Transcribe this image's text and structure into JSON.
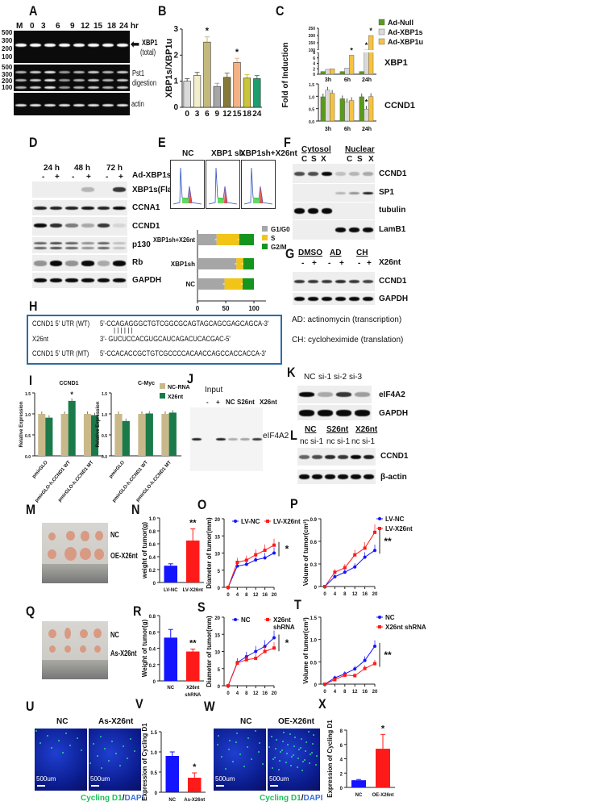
{
  "panels": {
    "A": "A",
    "B": "B",
    "C": "C",
    "D": "D",
    "E": "E",
    "F": "F",
    "G": "G",
    "H": "H",
    "I": "I",
    "J": "J",
    "K": "K",
    "L": "L",
    "M": "M",
    "N": "N",
    "O": "O",
    "P": "P",
    "Q": "Q",
    "R": "R",
    "S": "S",
    "T": "T",
    "U": "U",
    "V": "V",
    "W": "W",
    "X": "X"
  },
  "A": {
    "lanes": [
      "M",
      "0",
      "3",
      "6",
      "9",
      "12",
      "15",
      "18",
      "24 hr"
    ],
    "markers": [
      "500",
      "300",
      "200",
      "100"
    ],
    "markers2": [
      "500",
      "300",
      "200",
      "100"
    ],
    "labels": {
      "xbp1": "XBP1",
      "total": "(total)",
      "pst1": "Pst1",
      "digestion": "digestion",
      "actin": "actin"
    }
  },
  "C": {
    "gene_upper": "XBP1",
    "gene_lower": "CCND1"
  },
  "D": {
    "times": [
      "24 h",
      "48 h",
      "72 h"
    ],
    "signs": [
      "-",
      "+",
      "-",
      "+",
      "-",
      "+"
    ],
    "treatment": "Ad-XBP1s",
    "rows": [
      "XBP1s(Flag)",
      "CCNA1",
      "CCND1",
      "p130",
      "Rb",
      "GAPDH"
    ]
  },
  "E": {
    "histograms": [
      "NC",
      "XBP1 sh",
      "XBP1sh+X26nt"
    ]
  },
  "F": {
    "groups": [
      "Cytosol",
      "Nuclear"
    ],
    "lanes": [
      "C",
      "S",
      "X",
      "C",
      "S",
      "X"
    ],
    "rows": [
      "CCND1",
      "SP1",
      "tubulin",
      "LamB1"
    ]
  },
  "G": {
    "groups": [
      "DMSO",
      "AD",
      "CH"
    ],
    "signs": [
      "-",
      "+",
      "-",
      "+",
      "-",
      "+"
    ],
    "treatment": "X26nt",
    "rows": [
      "CCND1",
      "GAPDH"
    ],
    "notes": [
      "AD:  actinomycin (transcription)",
      "CH:  cycloheximide (translation)"
    ]
  },
  "H": {
    "wt_label": "CCND1 5' UTR (WT)",
    "wt_seq": "5'-CCAGAGGGCTGTCGGCGCAGTAGCAGCGAGCAGCA-3'",
    "pairing": "| | | | | |",
    "x26_label": "X26nt",
    "x26_seq": "3'-  GUCUCCACGUGCAUCAGACUCACGAC-5'",
    "mt_label": "CCND1 5' UTR (MT)",
    "mt_seq": "5'-CCACACCGCTGTCGCCCCACAACCAGCCACCACCA-3'"
  },
  "J": {
    "input": "Input",
    "lanes": [
      "-",
      "+",
      "NC",
      "S26nt",
      "X26nt"
    ],
    "band": "eIF4A2"
  },
  "K": {
    "lanes": [
      "NC",
      "si-1",
      "si-2",
      "si-3"
    ],
    "rows": [
      "eIF4A2",
      "GAPDH"
    ]
  },
  "L": {
    "groups": [
      "NC",
      "S26nt",
      "X26nt"
    ],
    "lanes": [
      "nc",
      "si-1",
      "nc",
      "si-1",
      "nc",
      "si-1"
    ],
    "rows": [
      "CCND1",
      "β-actin"
    ]
  },
  "M": {
    "rows": [
      "NC",
      "OE-X26nt"
    ]
  },
  "Q": {
    "rows": [
      "NC",
      "As-X26nt"
    ]
  },
  "U": {
    "titles": [
      "NC",
      "As-X26nt"
    ],
    "scale": "500um",
    "stain1": "Cycling D1",
    "slash": "/",
    "stain2": "DAPI"
  },
  "W": {
    "titles": [
      "NC",
      "OE-X26nt"
    ],
    "scale": "500um",
    "stain1": "Cycling D1",
    "slash": "/",
    "stain2": "DAPI"
  },
  "colors": {
    "blue": "#1414ff",
    "red": "#ff1a1a",
    "ad_null": "#5a9a1a",
    "ad_xbp1s": "#d9d9d9",
    "ad_xbp1u": "#f5c242",
    "nc_rna": "#c9b98a",
    "x26nt": "#1a7a4a",
    "g1": "#a6a6a6",
    "s": "#f2c418",
    "g2m": "#16951e",
    "dapi": "#3a6fd8",
    "cycd1": "#1fbf5a"
  },
  "chart_data": [
    {
      "id": "B",
      "type": "bar",
      "ylabel": "XBP1s/XBP1u",
      "categories": [
        "0",
        "3",
        "6",
        "9",
        "12",
        "15",
        "18",
        "24"
      ],
      "values": [
        1.0,
        1.22,
        2.5,
        0.8,
        1.15,
        1.72,
        1.12,
        1.1
      ],
      "errors": [
        0.1,
        0.12,
        0.2,
        0.12,
        0.16,
        0.16,
        0.13,
        0.12
      ],
      "ylim": [
        0,
        3
      ],
      "yticks": [
        "0",
        "1",
        "2",
        "3"
      ],
      "significant": [
        "6",
        "15"
      ],
      "marker": "*",
      "colors": [
        "#d9d9d9",
        "#f2eecb",
        "#c4b97c",
        "#a6a6a6",
        "#857a3a",
        "#f4b183",
        "#c9c43a",
        "#1e9e6e"
      ]
    },
    {
      "id": "C",
      "type": "bar",
      "ylabel": "Fold of Induction",
      "legend": [
        "Ad-Null",
        "Ad-XBP1s",
        "Ad-XBP1u"
      ],
      "legend_position": "top-right",
      "categories": [
        "3h",
        "6h",
        "24h"
      ],
      "upper": {
        "name": "XBP1",
        "yticks_low": [
          "0",
          "2",
          "4",
          "6",
          "8"
        ],
        "yticks_high": [
          "100",
          "150",
          "200",
          "250"
        ],
        "broken_axis": true,
        "series": [
          {
            "name": "Ad-Null",
            "values": [
              1,
              1,
              1
            ]
          },
          {
            "name": "Ad-XBP1s",
            "values": [
              1.8,
              2.3,
              90
            ]
          },
          {
            "name": "Ad-XBP1u",
            "values": [
              2,
              7,
              200
            ]
          }
        ]
      },
      "lower": {
        "name": "CCND1",
        "ylim": [
          0,
          1.5
        ],
        "yticks": [
          "0.0",
          "0.5",
          "1.0",
          "1.5"
        ],
        "series": [
          {
            "name": "Ad-Null",
            "values": [
              0.98,
              0.9,
              0.98
            ]
          },
          {
            "name": "Ad-XBP1s",
            "values": [
              1.25,
              0.78,
              0.48
            ]
          },
          {
            "name": "Ad-XBP1u",
            "values": [
              1.12,
              0.83,
              0.99
            ]
          }
        ]
      },
      "marker": "*"
    },
    {
      "id": "E",
      "type": "bar",
      "orientation": "horizontal",
      "stacked": true,
      "categories": [
        "NC",
        "XBP1sh",
        "XBP1sh+X26nt"
      ],
      "legend": [
        "G1/G0",
        "S",
        "G2/M"
      ],
      "legend_position": "top-right",
      "series": [
        {
          "name": "G1/G0",
          "values": [
            48,
            69,
            34
          ]
        },
        {
          "name": "S",
          "values": [
            32,
            12,
            40
          ]
        },
        {
          "name": "G2/M",
          "values": [
            20,
            19,
            26
          ]
        }
      ],
      "xlim": [
        0,
        100
      ],
      "xticks": [
        "0",
        "50",
        "100"
      ]
    },
    {
      "id": "I1",
      "type": "bar",
      "title": "CCND1",
      "ylabel": "Relative Expression",
      "categories": [
        "pmirGLO",
        "pmirGLO-h.CCND1 WT",
        "pmirGLO-h.CCND1 MT"
      ],
      "series": [
        {
          "name": "NC-RNA",
          "values": [
            1,
            1,
            1
          ]
        },
        {
          "name": "X26nt",
          "values": [
            0.91,
            1.31,
            0.97
          ]
        }
      ],
      "ylim": [
        0,
        1.5
      ],
      "yticks": [
        "0.0",
        "0.5",
        "1.0",
        "1.5"
      ],
      "marker": "*"
    },
    {
      "id": "I2",
      "type": "bar",
      "title": "C-Myc",
      "ylabel": "Relative Expression",
      "legend": [
        "NC-RNA",
        "X26nt"
      ],
      "legend_position": "top-right",
      "categories": [
        "pmirGLO",
        "pmirGLO-h.CCND1 WT",
        "pmirGLO-h.CCND1 MT"
      ],
      "series": [
        {
          "name": "NC-RNA",
          "values": [
            1,
            1,
            1
          ]
        },
        {
          "name": "X26nt",
          "values": [
            0.83,
            1.01,
            1.03
          ]
        }
      ],
      "ylim": [
        0,
        1.5
      ],
      "yticks": [
        "0.0",
        "0.5",
        "1.0",
        "1.5"
      ]
    },
    {
      "id": "N",
      "type": "bar",
      "ylabel": "weight of tumor(g)",
      "categories": [
        "LV-NC",
        "LV-X26nt"
      ],
      "values": [
        0.26,
        0.65
      ],
      "errors": [
        0.03,
        0.18
      ],
      "ylim": [
        0,
        1.0
      ],
      "yticks": [
        "0",
        "0.2",
        "0.4",
        "0.6",
        "0.8",
        "1.0"
      ],
      "marker": "**"
    },
    {
      "id": "O",
      "type": "line",
      "ylabel": "Diameter of tumor(mm)",
      "x": [
        0,
        4,
        8,
        12,
        16,
        20
      ],
      "series": [
        {
          "name": "LV-NC",
          "values": [
            0,
            6.2,
            6.7,
            8,
            8.6,
            10
          ]
        },
        {
          "name": "LV-X26nt",
          "values": [
            0,
            7.3,
            7.9,
            9.5,
            10.8,
            12.3
          ]
        }
      ],
      "ylim": [
        0,
        20
      ],
      "yticks": [
        "0",
        "5",
        "10",
        "15",
        "20"
      ],
      "xticks": [
        "0",
        "4",
        "8",
        "12",
        "16",
        "20"
      ],
      "marker": "*",
      "legend_position": "top"
    },
    {
      "id": "P",
      "type": "line",
      "ylabel": "Volume of tumor(cm³)",
      "x": [
        0,
        4,
        8,
        12,
        16,
        20
      ],
      "series": [
        {
          "name": "LV-NC",
          "values": [
            0,
            0.13,
            0.19,
            0.26,
            0.39,
            0.48
          ]
        },
        {
          "name": "LV-X26nt",
          "values": [
            0,
            0.19,
            0.25,
            0.42,
            0.51,
            0.72
          ]
        }
      ],
      "ylim": [
        0,
        0.9
      ],
      "yticks": [
        "0",
        "0.3",
        "0.6",
        "0.9"
      ],
      "xticks": [
        "0",
        "4",
        "8",
        "12",
        "16",
        "20"
      ],
      "marker": "**",
      "legend_position": "top-right"
    },
    {
      "id": "R",
      "type": "bar",
      "ylabel": "Weight of tumor(g)",
      "categories": [
        "NC",
        "X26nt shRNA"
      ],
      "values": [
        0.53,
        0.36
      ],
      "errors": [
        0.1,
        0.03
      ],
      "ylim": [
        0,
        0.8
      ],
      "yticks": [
        "0",
        "0.2",
        "0.4",
        "0.6",
        "0.8"
      ],
      "marker": "**"
    },
    {
      "id": "S",
      "type": "line",
      "ylabel": "Diameter of tumor(mm)",
      "x": [
        0,
        4,
        8,
        12,
        16,
        20
      ],
      "series": [
        {
          "name": "NC",
          "values": [
            0,
            6.8,
            8.5,
            10,
            11.5,
            14
          ]
        },
        {
          "name": "X26nt shRNA",
          "values": [
            0,
            6.6,
            7.6,
            8,
            10,
            11
          ]
        }
      ],
      "ylim": [
        0,
        20
      ],
      "yticks": [
        "0",
        "5",
        "10",
        "15",
        "20"
      ],
      "xticks": [
        "0",
        "4",
        "8",
        "12",
        "16",
        "20"
      ],
      "marker": "*",
      "legend_position": "top"
    },
    {
      "id": "T",
      "type": "line",
      "ylabel": "Volume of tumor(cm³)",
      "x": [
        0,
        4,
        8,
        12,
        16,
        20
      ],
      "series": [
        {
          "name": "NC",
          "values": [
            0,
            0.14,
            0.23,
            0.34,
            0.53,
            0.85
          ]
        },
        {
          "name": "X26nt shRNA",
          "values": [
            0,
            0.1,
            0.2,
            0.19,
            0.35,
            0.46
          ]
        }
      ],
      "ylim": [
        0,
        1.5
      ],
      "yticks": [
        "0",
        "0.5",
        "1.0",
        "1.5"
      ],
      "xticks": [
        "0",
        "4",
        "8",
        "12",
        "16",
        "20"
      ],
      "marker": "**",
      "legend_position": "top-right"
    },
    {
      "id": "V",
      "type": "bar",
      "ylabel": "Expression of Cycling D1",
      "categories": [
        "NC",
        "As-X26nt"
      ],
      "values": [
        0.9,
        0.36
      ],
      "errors": [
        0.1,
        0.12
      ],
      "ylim": [
        0,
        1.5
      ],
      "yticks": [
        "0",
        "0.5",
        "1.0",
        "1.5"
      ],
      "marker": "*"
    },
    {
      "id": "X",
      "type": "bar",
      "ylabel": "Expression of Cycling D1",
      "categories": [
        "NC",
        "OE-X26nt"
      ],
      "values": [
        1.0,
        5.4
      ],
      "errors": [
        0.1,
        2.0
      ],
      "ylim": [
        0,
        8
      ],
      "yticks": [
        "0",
        "2",
        "4",
        "6",
        "8"
      ],
      "marker": "*"
    }
  ]
}
